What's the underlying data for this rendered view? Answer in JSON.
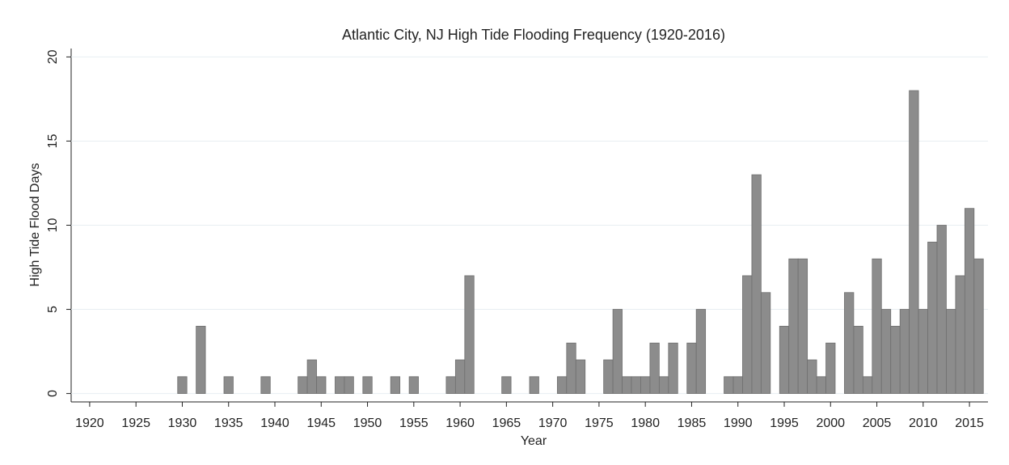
{
  "chart_data": {
    "type": "bar",
    "title": "Atlantic City, NJ High Tide Flooding Frequency (1920-2016)",
    "x_label": "Year",
    "y_label": "High Tide Flood Days",
    "x": [
      1930,
      1932,
      1935,
      1939,
      1943,
      1944,
      1945,
      1947,
      1948,
      1950,
      1953,
      1955,
      1959,
      1960,
      1961,
      1965,
      1968,
      1971,
      1972,
      1973,
      1976,
      1977,
      1978,
      1979,
      1980,
      1981,
      1982,
      1983,
      1985,
      1986,
      1989,
      1990,
      1991,
      1992,
      1993,
      1995,
      1996,
      1997,
      1998,
      1999,
      2000,
      2002,
      2003,
      2004,
      2005,
      2006,
      2007,
      2008,
      2009,
      2010,
      2011,
      2012,
      2013,
      2014,
      2015,
      2016
    ],
    "values": [
      1,
      4,
      1,
      1,
      1,
      2,
      1,
      1,
      1,
      1,
      1,
      1,
      1,
      2,
      7,
      1,
      1,
      1,
      3,
      2,
      2,
      5,
      1,
      1,
      1,
      3,
      1,
      3,
      3,
      5,
      1,
      1,
      7,
      13,
      6,
      4,
      8,
      8,
      2,
      1,
      3,
      6,
      4,
      1,
      8,
      5,
      4,
      5,
      18,
      5,
      9,
      10,
      5,
      7,
      11,
      8
    ],
    "color": "#8c8c8c",
    "xlim": [
      1918,
      2017
    ],
    "xticks": [
      1920,
      1925,
      1930,
      1935,
      1940,
      1945,
      1950,
      1955,
      1960,
      1965,
      1970,
      1975,
      1980,
      1985,
      1990,
      1995,
      2000,
      2005,
      2010,
      2015
    ],
    "ylim": [
      -0.5,
      20.5
    ],
    "yticks": [
      0,
      5,
      10,
      15,
      20
    ],
    "grid": true
  }
}
